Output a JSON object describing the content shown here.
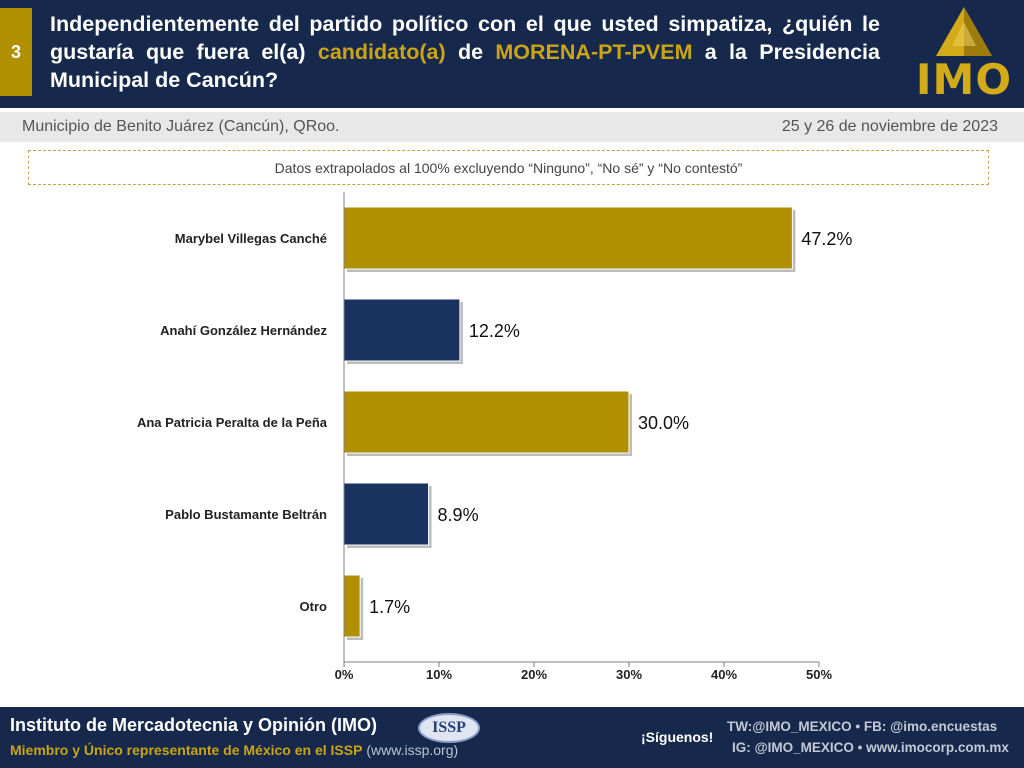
{
  "header": {
    "slide_number": "3",
    "question_before": "Independientemente del partido político con el que usted simpatiza, ¿quién le gustaría que fuera el(a) ",
    "question_hl1": "candidato(a)",
    "question_mid": " de ",
    "question_hl2": "MORENA-PT-PVEM",
    "question_after": " a la Presidencia Municipal de Cancún?",
    "logo_text": "IMO"
  },
  "subheader": {
    "municipality": "Municipio de Benito Juárez (Cancún), QRoo.",
    "date": "25 y 26 de noviembre de 2023"
  },
  "note": "Datos extrapolados al 100% excluyendo “Ninguno”, “No sé” y “No contestó”",
  "colors": {
    "gold": "#b08f00",
    "navy": "#1a3260",
    "header_bg": "#16294c",
    "highlight": "#c9a415"
  },
  "chart_data": {
    "type": "bar",
    "orientation": "horizontal",
    "categories": [
      "Marybel Villegas Canché",
      "Anahí González Hernández",
      "Ana Patricia Peralta de la Peña",
      "Pablo Bustamante Beltrán",
      "Otro"
    ],
    "values": [
      47.2,
      12.2,
      30.0,
      8.9,
      1.7
    ],
    "value_labels": [
      "47.2%",
      "12.2%",
      "30.0%",
      "8.9%",
      "1.7%"
    ],
    "bar_colors": [
      "#b08f00",
      "#1a3260",
      "#b08f00",
      "#1a3260",
      "#b08f00"
    ],
    "xlim": [
      0,
      50
    ],
    "xticks": [
      0,
      10,
      20,
      30,
      40,
      50
    ],
    "xtick_labels": [
      "0%",
      "10%",
      "20%",
      "30%",
      "40%",
      "50%"
    ],
    "grid": false,
    "title": "",
    "xlabel": "",
    "ylabel": ""
  },
  "footer": {
    "org": "Instituto de Mercadotecnia y Opinión (IMO)",
    "member": "Miembro y Único representante de México en el ISSP",
    "member_site": " (www.issp.org)",
    "issp_logo": "ISSP",
    "follow": "¡Síguenos!",
    "social_line1": "TW:@IMO_MEXICO • FB: @imo.encuestas",
    "social_line2": "IG: @IMO_MEXICO • www.imocorp.com.mx"
  }
}
